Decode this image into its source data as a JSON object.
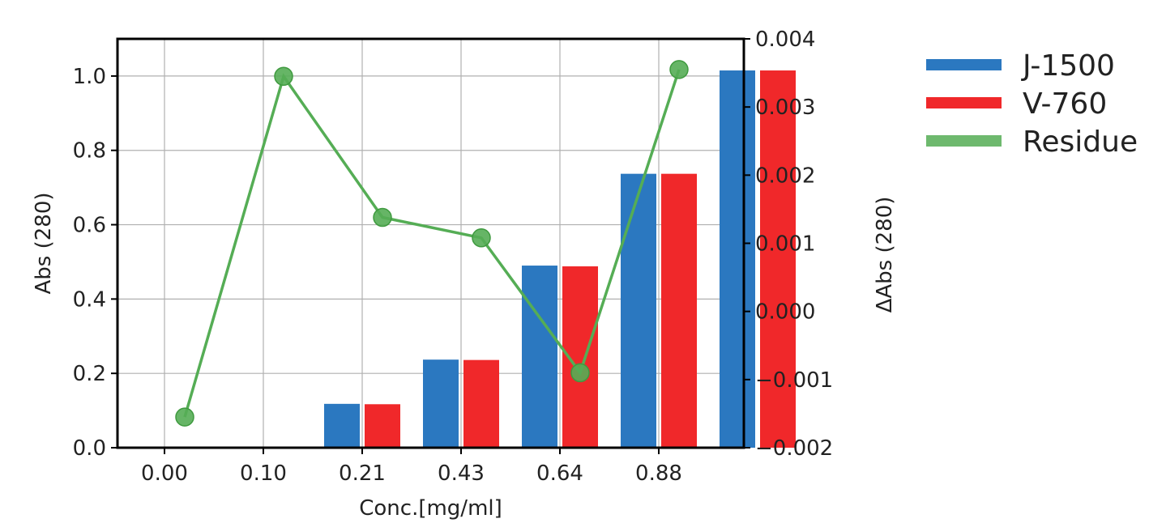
{
  "chart_data": {
    "type": "bar",
    "title": "",
    "categories": [
      "0.00",
      "0.10",
      "0.21",
      "0.43",
      "0.64",
      "0.88"
    ],
    "xlabel": "Conc.[mg/ml]",
    "ylabel": "Abs (280)",
    "y2label": "ΔAbs (280)",
    "ylim": [
      0,
      1.1
    ],
    "y2lim": [
      -0.002,
      0.004
    ],
    "yticks": [
      "0.0",
      "0.2",
      "0.4",
      "0.6",
      "0.8",
      "1.0"
    ],
    "y2ticks": [
      "−0.002",
      "−0.001",
      "0.000",
      "0.001",
      "0.002",
      "0.003",
      "0.004"
    ],
    "grid": true,
    "legend_position": "outside-right-top",
    "series": [
      {
        "name": "J-1500",
        "type": "bar",
        "axis": "left",
        "color": "#2b78c0",
        "values": [
          0.0,
          0.118,
          0.237,
          0.49,
          0.737,
          1.015
        ]
      },
      {
        "name": "V-760",
        "type": "bar",
        "axis": "left",
        "color": "#f0282a",
        "values": [
          0.0,
          0.117,
          0.236,
          0.488,
          0.737,
          1.015
        ]
      },
      {
        "name": "Residue",
        "type": "line",
        "axis": "right",
        "color": "#55ad55",
        "values": [
          -0.00155,
          0.00345,
          0.00138,
          0.00108,
          -0.0009,
          0.00355
        ]
      }
    ]
  }
}
